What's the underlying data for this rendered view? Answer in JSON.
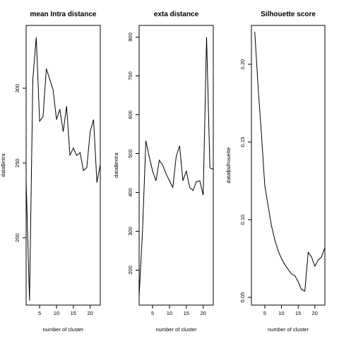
{
  "chart_data": [
    {
      "type": "line",
      "title": "mean Intra distance",
      "xlabel": "number of cluster",
      "ylabel": "data$intra",
      "xlim": [
        1,
        23
      ],
      "ylim": [
        155,
        342
      ],
      "xticks": [
        5,
        10,
        15,
        20
      ],
      "yticks": [
        200,
        250,
        300
      ],
      "grid": false,
      "x": [
        1,
        2,
        3,
        4,
        5,
        6,
        7,
        8,
        9,
        10,
        11,
        12,
        13,
        14,
        15,
        16,
        17,
        18,
        19,
        20,
        21,
        22,
        23
      ],
      "values": [
        238,
        158,
        306,
        334,
        278,
        281,
        313,
        306,
        299,
        279,
        286,
        271,
        288,
        255,
        260,
        255,
        257,
        245,
        247,
        271,
        279,
        237,
        249
      ]
    },
    {
      "type": "line",
      "title": "exta distance",
      "xlabel": "number of cluster",
      "ylabel": "data$extra",
      "xlim": [
        1,
        23
      ],
      "ylim": [
        110,
        830
      ],
      "xticks": [
        5,
        10,
        15,
        20
      ],
      "yticks": [
        200,
        300,
        400,
        500,
        600,
        700,
        800
      ],
      "grid": false,
      "x": [
        1,
        2,
        3,
        4,
        5,
        6,
        7,
        8,
        9,
        10,
        11,
        12,
        13,
        14,
        15,
        16,
        17,
        18,
        19,
        20,
        21,
        22,
        23
      ],
      "values": [
        133,
        300,
        533,
        492,
        455,
        430,
        483,
        470,
        448,
        430,
        413,
        493,
        520,
        430,
        455,
        413,
        405,
        428,
        430,
        393,
        800,
        463,
        460
      ]
    },
    {
      "type": "line",
      "title": "Silhouette score",
      "xlabel": "number of cluster",
      "ylabel": "data$silhouette",
      "xlim": [
        1,
        23
      ],
      "ylim": [
        0.045,
        0.225
      ],
      "xticks": [
        5,
        10,
        15,
        20
      ],
      "yticks": [
        0.05,
        0.1,
        0.15,
        0.2
      ],
      "grid": false,
      "x": [
        2,
        3,
        4,
        5,
        6,
        7,
        8,
        9,
        10,
        11,
        12,
        13,
        14,
        15,
        16,
        17,
        18,
        19,
        20,
        21,
        22,
        23
      ],
      "values": [
        0.221,
        0.185,
        0.155,
        0.122,
        0.109,
        0.096,
        0.087,
        0.08,
        0.075,
        0.071,
        0.068,
        0.065,
        0.064,
        0.06,
        0.055,
        0.054,
        0.079,
        0.076,
        0.07,
        0.074,
        0.076,
        0.082
      ]
    }
  ]
}
